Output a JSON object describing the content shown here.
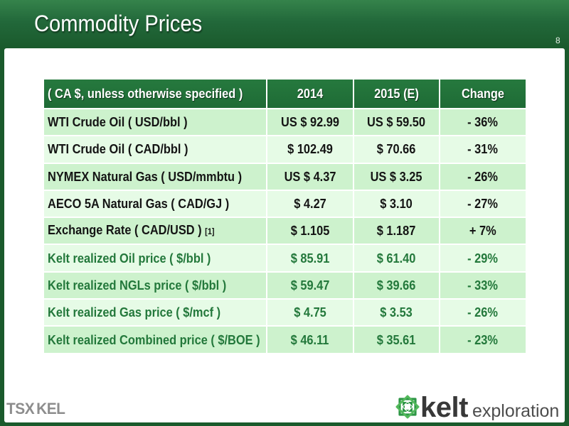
{
  "slide": {
    "title": "Commodity Prices",
    "page_number": "8"
  },
  "colors": {
    "frame_green": "#1a5a2c",
    "header_green": "#1e6b35",
    "row_green": "#cdf2cd",
    "row_light": "#e6fbe6",
    "kelt_text": "#23783b",
    "body_text": "#141414"
  },
  "table": {
    "headers": [
      "( CA $, unless otherwise specified )",
      "2014",
      "2015 (E)",
      "Change"
    ],
    "rows": [
      {
        "label": "WTI Crude Oil ( USD/bbl )",
        "v2014": "US $ 92.99",
        "v2015": "US $ 59.50",
        "change": "- 36%"
      },
      {
        "label": "WTI Crude Oil ( CAD/bbl )",
        "v2014": "$ 102.49",
        "v2015": "$ 70.66",
        "change": "- 31%"
      },
      {
        "label": "NYMEX Natural Gas ( USD/mmbtu )",
        "v2014": "US $ 4.37",
        "v2015": "US $ 3.25",
        "change": "- 26%"
      },
      {
        "label": "AECO 5A Natural Gas ( CAD/GJ )",
        "v2014": "$ 4.27",
        "v2015": "$ 3.10",
        "change": "- 27%"
      },
      {
        "label": "Exchange Rate ( CAD/USD )",
        "footnote": "[1]",
        "v2014": "$ 1.105",
        "v2015": "$ 1.187",
        "change": "+ 7%"
      },
      {
        "label": "Kelt realized Oil price ( $/bbl )",
        "v2014": "$ 85.91",
        "v2015": "$ 61.40",
        "change": "- 29%"
      },
      {
        "label": "Kelt realized NGLs price ( $/bbl )",
        "v2014": "$ 59.47",
        "v2015": "$ 39.66",
        "change": "- 33%"
      },
      {
        "label": "Kelt realized Gas price ( $/mcf )",
        "v2014": "$ 4.75",
        "v2015": "$ 3.53",
        "change": "- 26%"
      },
      {
        "label": "Kelt realized Combined price ( $/BOE )",
        "v2014": "$ 46.11",
        "v2015": "$ 35.61",
        "change": "- 23%"
      }
    ]
  },
  "logos": {
    "exchange": {
      "exchange": "TSX",
      "ticker": "KEL"
    },
    "company": {
      "icon": "celtic-knot-icon",
      "name": "kelt",
      "tagline": "exploration"
    }
  }
}
